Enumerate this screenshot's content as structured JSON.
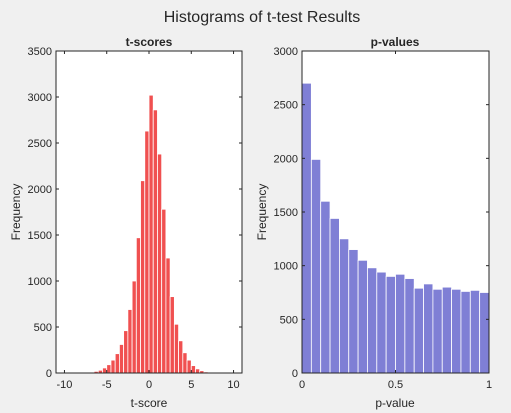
{
  "figure": {
    "title": "Histograms of t-test Results",
    "background": "#f0f0f0",
    "axes_background": "#ffffff"
  },
  "chart_data": [
    {
      "type": "bar",
      "title": "t-scores",
      "xlabel": "t-score",
      "ylabel": "Frequency",
      "xlim": [
        -11,
        11
      ],
      "ylim": [
        0,
        3500
      ],
      "xticks": [
        -10,
        -5,
        0,
        5,
        10
      ],
      "yticks": [
        0,
        500,
        1000,
        1500,
        2000,
        2500,
        3000,
        3500
      ],
      "grid": false,
      "color": "#f05050",
      "bin_width": 0.5,
      "bin_centers": [
        -7.25,
        -6.75,
        -6.25,
        -5.75,
        -5.25,
        -4.75,
        -4.25,
        -3.75,
        -3.25,
        -2.75,
        -2.25,
        -1.75,
        -1.25,
        -0.75,
        -0.25,
        0.25,
        0.75,
        1.25,
        1.75,
        2.25,
        2.75,
        3.25,
        3.75,
        4.25,
        4.75,
        5.25,
        5.75,
        6.25,
        6.75,
        7.25
      ],
      "values": [
        5,
        10,
        18,
        30,
        55,
        90,
        140,
        210,
        310,
        460,
        690,
        1000,
        1470,
        2090,
        2630,
        3020,
        2860,
        2380,
        1780,
        1250,
        830,
        530,
        350,
        220,
        140,
        80,
        45,
        25,
        12,
        5
      ]
    },
    {
      "type": "bar",
      "title": "p-values",
      "xlabel": "p-value",
      "ylabel": "Frequency",
      "xlim": [
        0,
        1
      ],
      "ylim": [
        0,
        3000
      ],
      "xticks": [
        0,
        0.5,
        1
      ],
      "yticks": [
        0,
        500,
        1000,
        1500,
        2000,
        2500,
        3000
      ],
      "grid": false,
      "color": "#7f7fd5",
      "bin_width": 0.05,
      "bin_centers": [
        0.025,
        0.075,
        0.125,
        0.175,
        0.225,
        0.275,
        0.325,
        0.375,
        0.425,
        0.475,
        0.525,
        0.575,
        0.625,
        0.675,
        0.725,
        0.775,
        0.825,
        0.875,
        0.925,
        0.975
      ],
      "values": [
        2700,
        1990,
        1600,
        1440,
        1250,
        1150,
        1050,
        980,
        940,
        900,
        920,
        880,
        790,
        830,
        780,
        800,
        780,
        760,
        770,
        750
      ]
    }
  ]
}
